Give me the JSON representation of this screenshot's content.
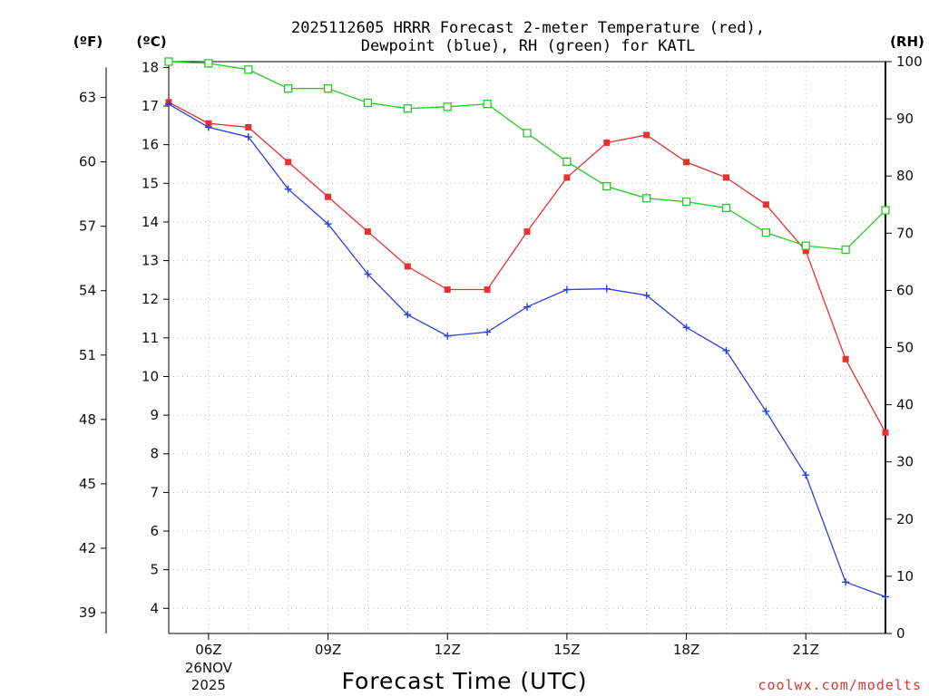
{
  "chart_data": {
    "type": "line",
    "title_lines": [
      "2025112605 HRRR Forecast 2-meter Temperature (red),",
      "Dewpoint (blue), RH (green) for KATL"
    ],
    "xlabel": "Forecast Time (UTC)",
    "x_hours": [
      5,
      6,
      7,
      8,
      9,
      10,
      11,
      12,
      13,
      14,
      15,
      16,
      17,
      18,
      19,
      20,
      21,
      22,
      23
    ],
    "xlim": [
      5,
      23
    ],
    "x_ticks": [
      {
        "hour": 6,
        "label": "06Z",
        "sublabels": [
          "26NOV",
          "2025"
        ]
      },
      {
        "hour": 9,
        "label": "09Z",
        "sublabels": []
      },
      {
        "hour": 12,
        "label": "12Z",
        "sublabels": []
      },
      {
        "hour": 15,
        "label": "15Z",
        "sublabels": []
      },
      {
        "hour": 18,
        "label": "18Z",
        "sublabels": []
      },
      {
        "hour": 21,
        "label": "21Z",
        "sublabels": []
      }
    ],
    "celsius_axis": {
      "unit_label": "(ºC)",
      "range": [
        3.35,
        18.15
      ],
      "ticks": [
        4,
        5,
        6,
        7,
        8,
        9,
        10,
        11,
        12,
        13,
        14,
        15,
        16,
        17,
        18
      ]
    },
    "fahrenheit_axis": {
      "unit_label": "(ºF)",
      "ticks": [
        39,
        42,
        45,
        48,
        51,
        54,
        57,
        60,
        63
      ]
    },
    "rh_axis": {
      "unit_label": "(RH)",
      "range": [
        0,
        100
      ],
      "ticks": [
        0,
        10,
        20,
        30,
        40,
        50,
        60,
        70,
        80,
        90,
        100
      ]
    },
    "series": [
      {
        "name": "Temperature",
        "axis": "celsius",
        "color": "#e83030",
        "marker": "filled-square",
        "values": [
          17.1,
          16.55,
          16.45,
          15.55,
          14.65,
          13.75,
          12.85,
          12.25,
          12.25,
          13.75,
          15.15,
          16.05,
          16.25,
          15.55,
          15.15,
          14.45,
          13.25,
          10.45,
          8.55
        ]
      },
      {
        "name": "Dewpoint",
        "axis": "celsius",
        "color": "#2b3fe0",
        "marker": "plus",
        "values": [
          17.05,
          16.45,
          16.2,
          14.85,
          13.95,
          12.65,
          11.6,
          11.05,
          11.15,
          11.8,
          12.25,
          12.27,
          12.1,
          11.27,
          10.67,
          9.1,
          7.45,
          4.68,
          4.3
        ]
      },
      {
        "name": "RH",
        "axis": "rh",
        "color": "#22cc22",
        "marker": "open-square",
        "values": [
          100,
          99.7,
          98.6,
          95.3,
          95.3,
          92.8,
          91.8,
          92.1,
          92.6,
          87.5,
          82.5,
          78.2,
          76.1,
          75.5,
          74.4,
          70.1,
          67.8,
          67.1,
          74.0
        ]
      }
    ],
    "grid": true
  },
  "credit": "coolwx.com/modelts",
  "colors": {
    "credit": "#e83030",
    "grid": "#b8b8b8"
  }
}
